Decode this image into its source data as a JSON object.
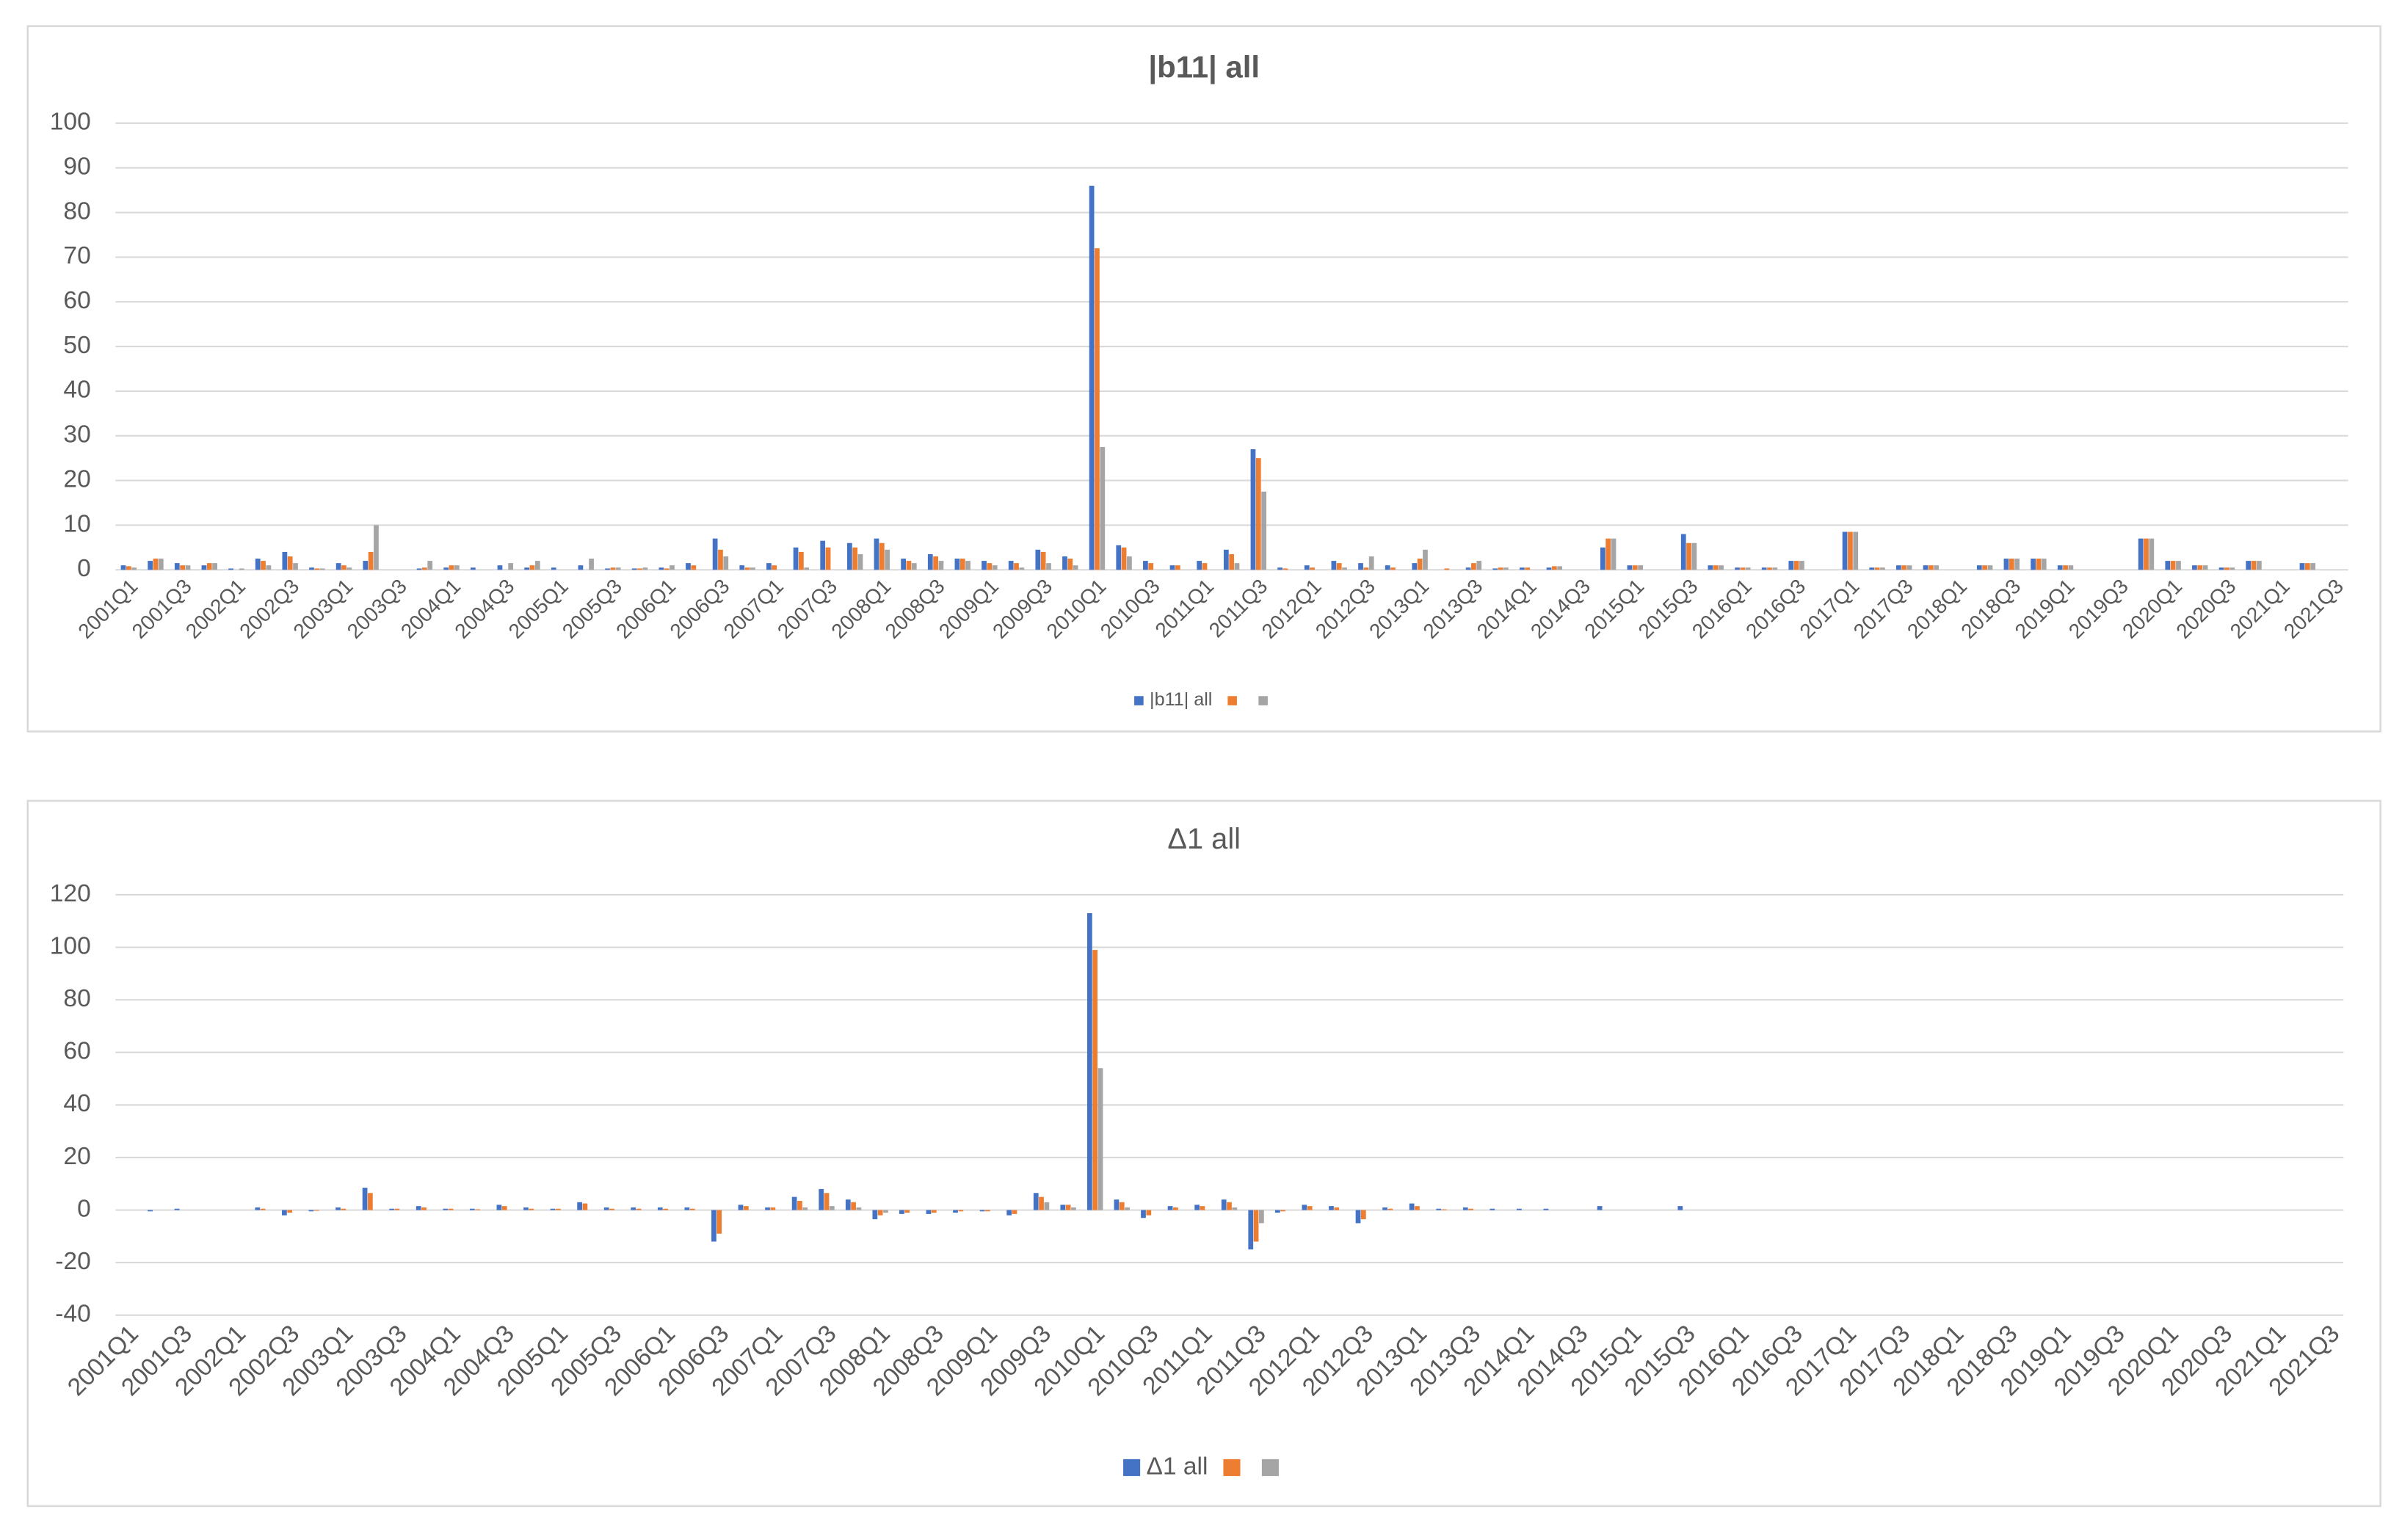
{
  "chart_data": [
    {
      "type": "bar",
      "title": "|b11| all",
      "categories": [
        "2001Q1",
        null,
        "2001Q3",
        null,
        "2002Q1",
        null,
        "2002Q3",
        null,
        "2003Q1",
        null,
        "2003Q3",
        null,
        "2004Q1",
        null,
        "2004Q3",
        null,
        "2005Q1",
        null,
        "2005Q3",
        null,
        "2006Q1",
        null,
        "2006Q3",
        null,
        "2007Q1",
        null,
        "2007Q3",
        null,
        "2008Q1",
        null,
        "2008Q3",
        null,
        "2009Q1",
        null,
        "2009Q3",
        null,
        "2010Q1",
        null,
        "2010Q3",
        null,
        "2011Q1",
        null,
        "2011Q3",
        null,
        "2012Q1",
        null,
        "2012Q3",
        null,
        "2013Q1",
        null,
        "2013Q3",
        null,
        "2014Q1",
        null,
        "2014Q3",
        null,
        "2015Q1",
        null,
        "2015Q3",
        null,
        "2016Q1",
        null,
        "2016Q3",
        null,
        "2017Q1",
        null,
        "2017Q3",
        null,
        "2018Q1",
        null,
        "2018Q3",
        null,
        "2019Q1",
        null,
        "2019Q3",
        null,
        "2020Q1",
        null,
        "2020Q3",
        null,
        "2021Q1",
        null,
        "2021Q3"
      ],
      "series": [
        {
          "name": "|b11| all",
          "color": "#4472c4",
          "values": [
            1,
            2,
            1.5,
            1,
            0.3,
            2.5,
            4,
            0.5,
            1.5,
            2,
            0,
            0.3,
            0.5,
            0.5,
            1,
            0.5,
            0.5,
            1,
            0.3,
            0.3,
            0.5,
            1.5,
            7,
            1,
            1.5,
            5,
            6.5,
            6,
            7,
            2.5,
            3.5,
            2.5,
            2,
            2,
            4.5,
            3,
            86,
            5.5,
            2,
            1,
            2,
            4.5,
            27,
            0.5,
            1,
            2,
            1.5,
            1,
            1.5,
            0,
            0.5,
            0.3,
            0.5,
            0.5,
            0,
            5,
            1,
            0,
            8,
            1,
            0.5,
            0.5,
            2,
            0,
            8.5,
            0.5,
            1,
            1,
            0,
            1,
            2.5,
            2.5,
            1,
            0,
            0,
            7,
            2,
            1,
            0.5,
            2,
            0,
            1.5,
            0
          ]
        },
        {
          "color": "#ed7d31",
          "values": [
            0.8,
            2.5,
            1,
            1.5,
            0,
            2,
            3,
            0.3,
            1,
            4,
            0,
            0.5,
            1,
            0,
            0,
            1,
            0,
            0,
            0.5,
            0.3,
            0.3,
            1,
            4.5,
            0.5,
            1,
            4,
            5,
            5,
            6,
            2,
            3,
            2.5,
            1.5,
            1.5,
            4,
            2.5,
            72,
            5,
            1.5,
            1,
            1.5,
            3.5,
            25,
            0.3,
            0.5,
            1.5,
            0.5,
            0.5,
            2.5,
            0.3,
            1.5,
            0.5,
            0.5,
            0.8,
            0,
            7,
            1,
            0,
            6,
            1,
            0.5,
            0.5,
            2,
            0,
            8.5,
            0.5,
            1,
            1,
            0,
            1,
            2.5,
            2.5,
            1,
            0,
            0,
            7,
            2,
            1,
            0.5,
            2,
            0,
            1.5,
            0
          ]
        },
        {
          "color": "#a5a5a5",
          "values": [
            0.5,
            2.5,
            1,
            1.5,
            0.3,
            1,
            1.5,
            0.3,
            0.5,
            10,
            0,
            2,
            1,
            0,
            1.5,
            2,
            0,
            2.5,
            0.5,
            0.5,
            1,
            0,
            3,
            0.5,
            0,
            0.5,
            0,
            3.5,
            4.5,
            1.5,
            2,
            2,
            1,
            0.5,
            1.5,
            1,
            27.5,
            3,
            0,
            0,
            0,
            1.5,
            17.5,
            0,
            0,
            0.5,
            3,
            0,
            4.5,
            0,
            2,
            0.5,
            0,
            0.8,
            0,
            7,
            1,
            0,
            6,
            1,
            0.5,
            0.5,
            2,
            0,
            8.5,
            0.5,
            1,
            1,
            0,
            1,
            2.5,
            2.5,
            1,
            0,
            0,
            7,
            2,
            1,
            0.5,
            2,
            0,
            1.5,
            0
          ]
        }
      ],
      "ylim": [
        0,
        100
      ],
      "yticks": [
        0,
        10,
        20,
        30,
        40,
        50,
        60,
        70,
        80,
        90,
        100
      ],
      "grid": true,
      "legend": "bottom"
    },
    {
      "type": "bar",
      "title": "Δ1 all",
      "categories": [
        "2001Q1",
        null,
        "2001Q3",
        null,
        "2002Q1",
        null,
        "2002Q3",
        null,
        "2003Q1",
        null,
        "2003Q3",
        null,
        "2004Q1",
        null,
        "2004Q3",
        null,
        "2005Q1",
        null,
        "2005Q3",
        null,
        "2006Q1",
        null,
        "2006Q3",
        null,
        "2007Q1",
        null,
        "2007Q3",
        null,
        "2008Q1",
        null,
        "2008Q3",
        null,
        "2009Q1",
        null,
        "2009Q3",
        null,
        "2010Q1",
        null,
        "2010Q3",
        null,
        "2011Q1",
        null,
        "2011Q3",
        null,
        "2012Q1",
        null,
        "2012Q3",
        null,
        "2013Q1",
        null,
        "2013Q3",
        null,
        "2014Q1",
        null,
        "2014Q3",
        null,
        "2015Q1",
        null,
        "2015Q3",
        null,
        "2016Q1",
        null,
        "2016Q3",
        null,
        "2017Q1",
        null,
        "2017Q3",
        null,
        "2018Q1",
        null,
        "2018Q3",
        null,
        "2019Q1",
        null,
        "2019Q3",
        null,
        "2020Q1",
        null,
        "2020Q3",
        null,
        "2021Q1",
        null,
        "2021Q3"
      ],
      "series": [
        {
          "name": "Δ1 all",
          "color": "#4472c4",
          "values": [
            0,
            -0.5,
            0.5,
            0,
            0,
            1,
            -2,
            -0.5,
            1,
            8.5,
            0.5,
            1.5,
            0.5,
            0.5,
            2,
            1,
            0.5,
            3,
            1,
            1,
            1,
            1,
            -12,
            2,
            1,
            5,
            8,
            4,
            -3.5,
            -1.5,
            -1.5,
            -1,
            -0.5,
            -2,
            6.5,
            2,
            113,
            4,
            -3,
            1.5,
            2,
            4,
            -15,
            -1,
            2,
            1.5,
            -5,
            1,
            2.5,
            0.5,
            1,
            0.5,
            0.5,
            0.5,
            0,
            1.5,
            0,
            0,
            1.5,
            0,
            0,
            0,
            0,
            0,
            0,
            0,
            0,
            0,
            0,
            0,
            0,
            0,
            0,
            0,
            0,
            0,
            0,
            0,
            0,
            0,
            0,
            0,
            0
          ]
        },
        {
          "color": "#ed7d31",
          "values": [
            0,
            0,
            0,
            0,
            0,
            0.5,
            -1,
            -0.3,
            0.5,
            6.5,
            0.5,
            1,
            0.5,
            0.3,
            1.5,
            0.5,
            0.5,
            2.5,
            0.5,
            0.5,
            0.5,
            0.5,
            -9,
            1.5,
            1,
            3.5,
            6.5,
            3,
            -2,
            -1,
            -1,
            -0.5,
            -0.5,
            -1.5,
            5,
            2,
            99,
            3,
            -2,
            1,
            1.5,
            3,
            -12,
            -0.5,
            1.5,
            1,
            -3.5,
            0.5,
            1.5,
            0.3,
            0.5,
            0,
            0,
            0,
            0,
            0,
            0,
            0,
            0,
            0,
            0,
            0,
            0,
            0,
            0,
            0,
            0,
            0,
            0,
            0,
            0,
            0,
            0,
            0,
            0,
            0,
            0,
            0,
            0,
            0,
            0,
            0,
            0
          ]
        },
        {
          "color": "#a5a5a5",
          "values": [
            0,
            0,
            0,
            0,
            0,
            0,
            0,
            0,
            0,
            0,
            0,
            0,
            0,
            0,
            0,
            0,
            0,
            0,
            0,
            0,
            0,
            0,
            0,
            0,
            0,
            1,
            1.5,
            1,
            -1,
            0,
            0,
            0,
            0,
            0,
            3,
            1,
            54,
            1,
            0,
            0,
            0,
            1,
            -5,
            0,
            0,
            0,
            0,
            0,
            0,
            0,
            0,
            0,
            0,
            0,
            0,
            0,
            0,
            0,
            0,
            0,
            0,
            0,
            0,
            0,
            0,
            0,
            0,
            0,
            0,
            0,
            0,
            0,
            0,
            0,
            0,
            0,
            0,
            0,
            0,
            0,
            0,
            0,
            0
          ]
        }
      ],
      "ylim": [
        -40,
        120
      ],
      "yticks": [
        -40,
        -20,
        0,
        20,
        40,
        60,
        80,
        100,
        120
      ],
      "grid": true,
      "legend": "bottom"
    }
  ]
}
